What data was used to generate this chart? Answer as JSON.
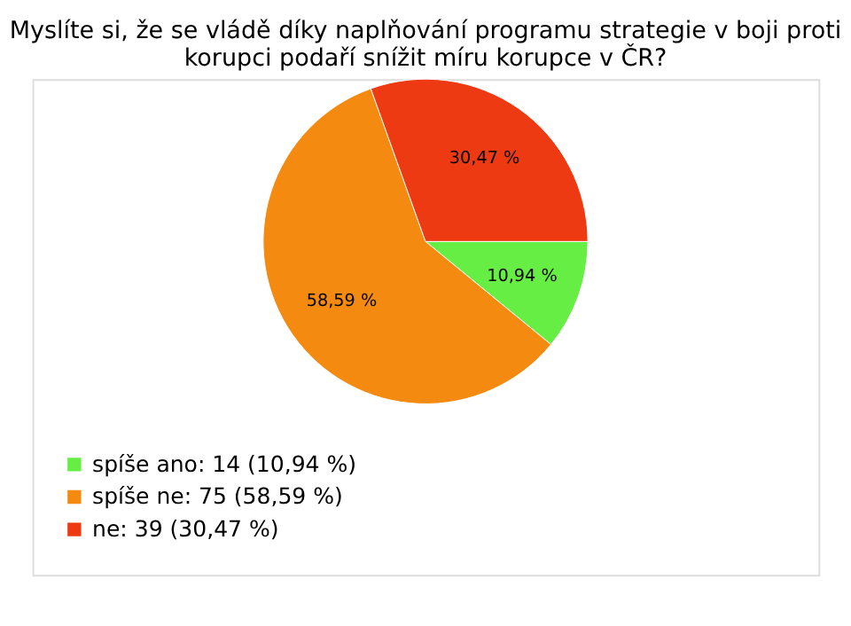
{
  "chart_data": {
    "type": "pie",
    "title": [
      "Myslíte si, že se vládě díky naplňování programu strategie v boji proti",
      "korupci podaří snížit míru korupce v ČR?"
    ],
    "categories": [
      "spíše ano: 14 (10,94 %)",
      "spíše ne: 75 (58,59 %)",
      "ne: 39 (30,47 %)"
    ],
    "values": [
      10.94,
      58.59,
      30.47
    ],
    "value_labels": [
      "10,94 %",
      "58,59 %",
      "30,47 %"
    ],
    "colors": [
      "#66ee44",
      "#f58a10",
      "#ee3a12"
    ],
    "legend": "bottom left"
  }
}
